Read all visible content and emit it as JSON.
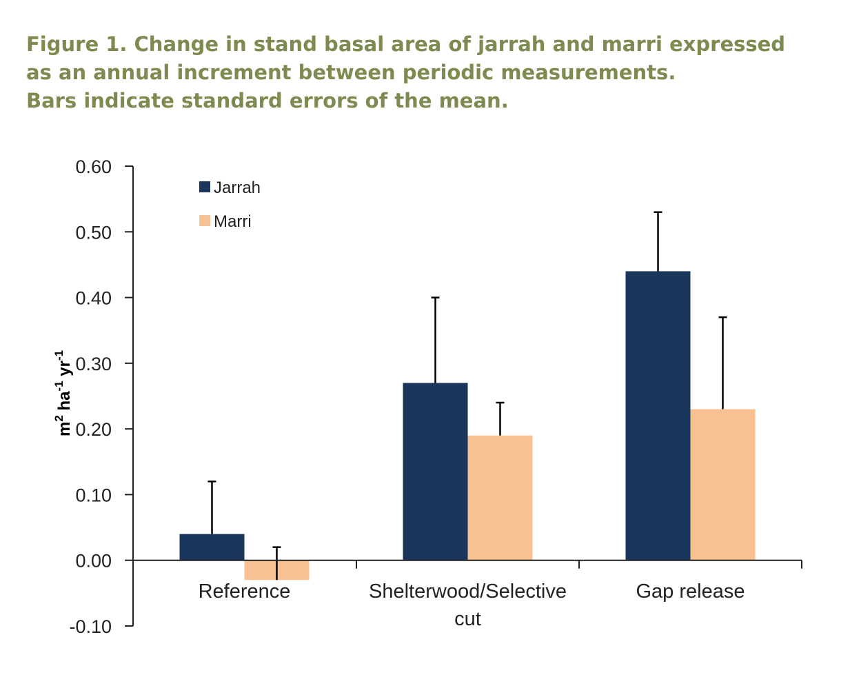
{
  "caption": {
    "line1": "Figure 1. Change in stand basal area of jarrah and marri expressed",
    "line2": "as an annual increment between periodic measurements.",
    "line3": "Bars indicate standard errors of the mean."
  },
  "colors": {
    "caption": "#7d8b50",
    "jarrah": "#1b365d",
    "marri": "#f8c191",
    "axis": "#222222"
  },
  "chart_data": {
    "type": "bar",
    "categories": [
      "Reference",
      "Shelterwood/Selective cut",
      "Gap release"
    ],
    "category_lines": [
      [
        "Reference"
      ],
      [
        "Shelterwood/Selective",
        "cut"
      ],
      [
        "Gap release"
      ]
    ],
    "series": [
      {
        "name": "Jarrah",
        "values": [
          0.04,
          0.27,
          0.44
        ],
        "errors": [
          0.08,
          0.13,
          0.09
        ]
      },
      {
        "name": "Marri",
        "values": [
          -0.03,
          0.19,
          0.23
        ],
        "errors": [
          0.05,
          0.05,
          0.14
        ]
      }
    ],
    "ylim": [
      -0.1,
      0.6
    ],
    "yticks": [
      -0.1,
      0.0,
      0.1,
      0.2,
      0.3,
      0.4,
      0.5,
      0.6
    ],
    "ytick_labels": [
      "-0.10",
      "0.00",
      "0.10",
      "0.20",
      "0.30",
      "0.40",
      "0.50",
      "0.60"
    ],
    "ylabel": {
      "base": "m",
      "sup1": "2",
      "mid1": " ha",
      "sup2": "-1",
      "mid2": " yr",
      "sup3": "-1"
    },
    "xlabel": "",
    "grid": false,
    "legend_position": "top-left"
  }
}
